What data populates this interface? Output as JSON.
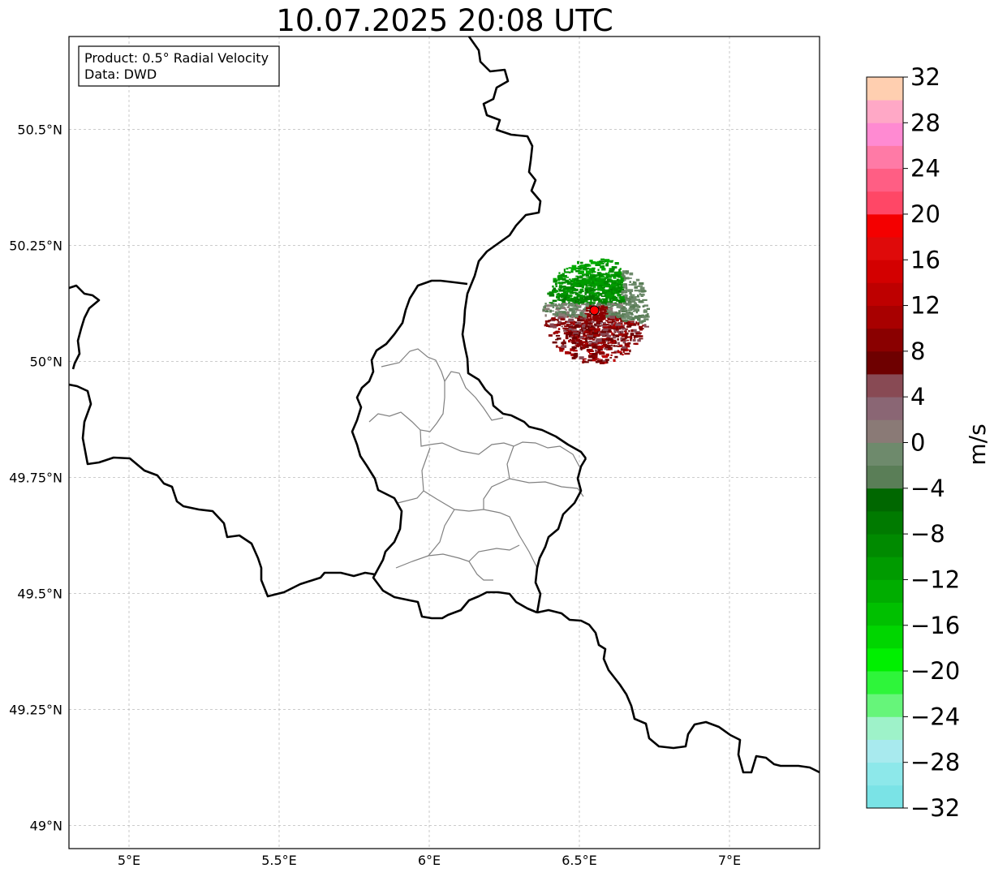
{
  "title": "10.07.2025 20:08 UTC",
  "info_box": {
    "line1": "Product: 0.5° Radial Velocity",
    "line2": "Data: DWD"
  },
  "map": {
    "projection": "lon-lat",
    "lon_range": [
      4.8,
      7.3
    ],
    "lat_range": [
      48.95,
      50.7
    ],
    "grid": true,
    "x_ticks": [
      {
        "value": 5.0,
        "label": "5°E"
      },
      {
        "value": 5.5,
        "label": "5.5°E"
      },
      {
        "value": 6.0,
        "label": "6°E"
      },
      {
        "value": 6.5,
        "label": "6.5°E"
      },
      {
        "value": 7.0,
        "label": "7°E"
      }
    ],
    "y_ticks": [
      {
        "value": 49.0,
        "label": "49°N"
      },
      {
        "value": 49.25,
        "label": "49.25°N"
      },
      {
        "value": 49.5,
        "label": "49.5°N"
      },
      {
        "value": 49.75,
        "label": "49.75°N"
      },
      {
        "value": 50.0,
        "label": "50°N"
      },
      {
        "value": 50.25,
        "label": "50.25°N"
      },
      {
        "value": 50.5,
        "label": "50.5°N"
      }
    ],
    "radar_site": {
      "lon": 6.55,
      "lat": 50.11,
      "color": "#ff0000"
    },
    "echo_radius_deg": 0.5
  },
  "colorbar": {
    "label": "m/s",
    "min": -32,
    "max": 32,
    "step": 4,
    "tick_labels": [
      "32",
      "28",
      "24",
      "20",
      "16",
      "12",
      "8",
      "4",
      "0",
      "−4",
      "−8",
      "−12",
      "−16",
      "−20",
      "−24",
      "−28",
      "−32"
    ],
    "colors_bottom_to_top": [
      "#7ae3e6",
      "#8de8ea",
      "#a8eaee",
      "#9ef2c9",
      "#66f57a",
      "#2ef53a",
      "#00f000",
      "#00d600",
      "#00c000",
      "#00ad00",
      "#009b00",
      "#008a00",
      "#007a00",
      "#006700",
      "#5a7e57",
      "#6e8a6c",
      "#8a7a76",
      "#8a6674",
      "#884a54",
      "#6e0000",
      "#8a0000",
      "#a80000",
      "#be0000",
      "#d30000",
      "#df0a0a",
      "#f40000",
      "#ff4766",
      "#ff5e84",
      "#ff7aa6",
      "#ff8ad2",
      "#ffa8c6",
      "#ffcfb0"
    ]
  }
}
